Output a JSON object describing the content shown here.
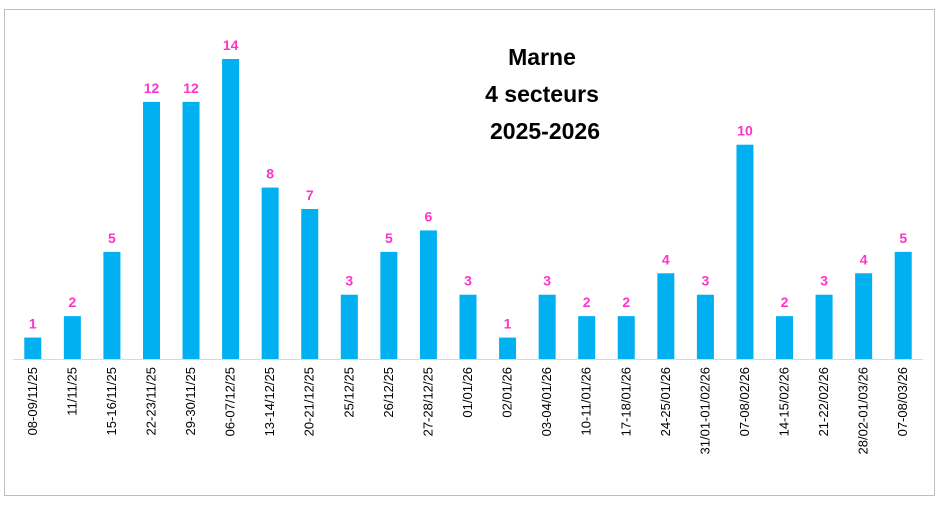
{
  "chart_data": {
    "type": "bar",
    "title_lines": [
      "Marne",
      "4 secteurs",
      "2025-2026"
    ],
    "categories": [
      "08-09/11/25",
      "11/11/25",
      "15-16/11/25",
      "22-23/11/25",
      "29-30/11/25",
      "06-07/12/25",
      "13-14/12/25",
      "20-21/12/25",
      "25/12/25",
      "26/12/25",
      "27-28/12/25",
      "01/01/26",
      "02/01/26",
      "03-04/01/26",
      "10-11/01/26",
      "17-18/01/26",
      "24-25/01/26",
      "31/01-01/02/26",
      "07-08/02/26",
      "14-15/02/26",
      "21-22/02/26",
      "28/02-01/03/26",
      "07-08/03/26"
    ],
    "values": [
      1,
      2,
      5,
      12,
      12,
      14,
      8,
      7,
      3,
      5,
      6,
      3,
      1,
      3,
      2,
      2,
      4,
      3,
      10,
      2,
      3,
      4,
      5
    ],
    "data_labels": [
      "1",
      "2",
      "5",
      "12",
      "12",
      "14",
      "8",
      "7",
      "3",
      "5",
      "6",
      "3",
      "1",
      "3",
      "2",
      "2",
      "4",
      "3",
      "10",
      "2",
      "3",
      "4",
      "5"
    ],
    "xlabel": "",
    "ylabel": "",
    "ylim": [
      0,
      14
    ],
    "grid": false,
    "legend": "none",
    "colors": {
      "bar": "#00b0f0",
      "data_label": "#ff33cc",
      "axis": "#d9d9d9",
      "border": "#bfbfbf"
    }
  }
}
